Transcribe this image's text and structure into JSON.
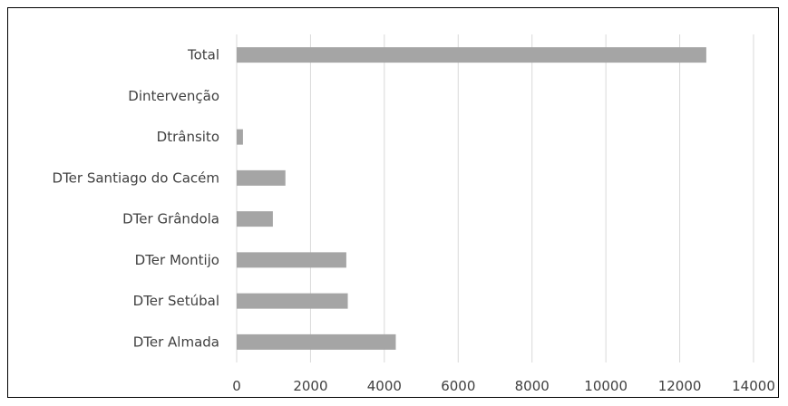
{
  "chart_data": {
    "type": "bar",
    "orientation": "horizontal",
    "categories": [
      "Total",
      "Dintervenção",
      "Dtrânsito",
      "DTer Santiago do Cacém",
      "DTer Grândola",
      "DTer Montijo",
      "DTer Setúbal",
      "DTer Almada"
    ],
    "values": [
      12720,
      0,
      170,
      1320,
      980,
      2970,
      3010,
      4310
    ],
    "title": "",
    "xlabel": "",
    "ylabel": "",
    "xlim": [
      0,
      14000
    ],
    "xticks": [
      0,
      2000,
      4000,
      6000,
      8000,
      10000,
      12000,
      14000
    ],
    "grid": "vertical",
    "legend": "none",
    "bar_color": "#a5a5a5",
    "grid_color": "#d9d9d9"
  }
}
